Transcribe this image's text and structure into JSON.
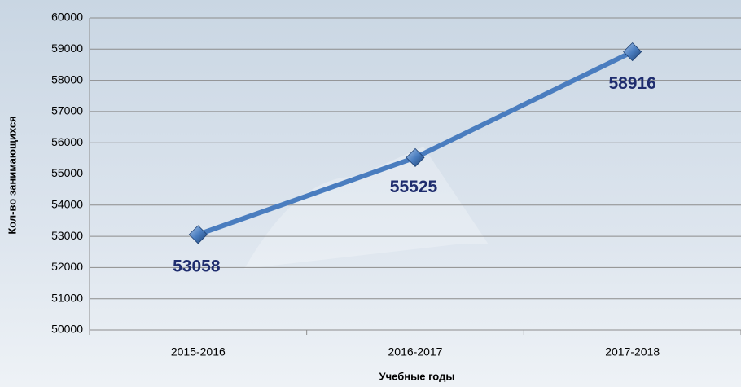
{
  "chart_data": {
    "type": "line",
    "x_label": "Учебные годы",
    "y_label": "Кол-во занимающихся",
    "categories": [
      "2015-2016",
      "2016-2017",
      "2017-2018"
    ],
    "values": [
      53058,
      55525,
      58916
    ],
    "color": "#4a7dbf",
    "ylim": [
      50000,
      60000
    ],
    "yticks": [
      50000,
      51000,
      52000,
      53000,
      54000,
      55000,
      56000,
      57000,
      58000,
      59000,
      60000
    ],
    "grid": true
  }
}
